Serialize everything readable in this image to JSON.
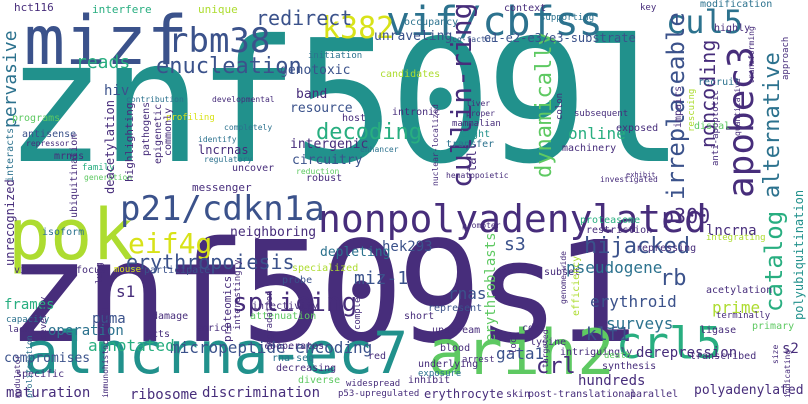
{
  "palette": {
    "dark-purple": "#472d7b",
    "indigo": "#3b528b",
    "blue": "#2c728e",
    "teal": "#21918c",
    "green": "#28ae80",
    "light-green": "#5ec962",
    "lime": "#addc30",
    "yellow": "#d8e219"
  },
  "words": {
    "znf509l": "znf509l",
    "znf509s1": "znf509s1",
    "mizf": "mizf",
    "pok": "pok",
    "alncrna_ec7": "alncrna-ec7",
    "arih2": "arih2",
    "apobec3": "apobec3",
    "nonpolyadenylated": "nonpolyadenylated",
    "vif_cbfss": "vif/cbfss",
    "rbm38": "rbm38",
    "p21_cdkn1a": "p21/cdkn1a",
    "cul5": "cul5",
    "crl5": "crl5",
    "k382": "k382",
    "eif4g": "eif4g",
    "enucleation": "enucleation",
    "cullin_ring": "cullin-ring",
    "splicing": "splicing",
    "decoding": "decoding",
    "erythropoiesis": "erythropoiesis",
    "irreplaceable": "irreplaceable",
    "dynamically": "dynamically",
    "catalog": "catalog",
    "alternative": "alternative",
    "noncoding": "noncoding",
    "hijacked": "hijacked",
    "p300": "p300",
    "pervasive": "pervasive",
    "polyadenylated": "polyadenylated",
    "redirect": "redirect",
    "reads": "reads",
    "s3": "s3",
    "rb": "rb",
    "miz_1": "miz-1",
    "klf1": "klf1",
    "crl": "crl",
    "pseudogene": "pseudogene",
    "erythroid": "erythroid",
    "micropeptide_encoding": "micropeptide-encoding",
    "annotated": "annotated",
    "online": "online",
    "surveys": "surveys",
    "gata1": "gata1",
    "erythroblasts": "erythroblasts",
    "hiv": "hiv",
    "s1": "s1",
    "rnas": "rnas",
    "hek293": "hek293",
    "derepression": "derepression",
    "hundreds": "hundreds",
    "s2": "s2",
    "unraveling": "unraveling",
    "genotoxic": "genotoxic",
    "e1_e2_e3": "e1-e2-e3/e3-substrate",
    "deacetylation": "deacetylation",
    "lncrnas": "lncrnas",
    "band": "band",
    "resource": "resource",
    "intergenic": "intergenic",
    "circuitry": "circuitry",
    "neighboring": "neighboring",
    "depleting": "depleting",
    "operation": "operation",
    "frames": "frames",
    "puma": "puma",
    "compromises": "compromises",
    "proteomics": "proteomics",
    "erythrocyte": "erythrocyte",
    "ribosome": "ribosome",
    "discrimination": "discrimination",
    "maturation": "maturation",
    "lncrna": "lncrna",
    "prime": "prime",
    "polyubiquitination": "polyubiquitination",
    "unrecognized": "unrecognized",
    "tall": "tall",
    "interfere": "interfere",
    "unique": "unique",
    "hct116": "hct116",
    "context": "context",
    "supporting": "supporting",
    "occupancy": "occupancy",
    "key": "key",
    "modification": "modification",
    "highly": "highly",
    "approach": "approach",
    "co_factor": "co-factor",
    "initiation": "initiation",
    "transforming": "transforming",
    "recruit": "recruit",
    "developmental": "developmental",
    "contribution": "contribution",
    "candidates": "candidates",
    "liver": "liver",
    "proper": "proper",
    "colon": "colon",
    "intronic": "intronic",
    "mammalian": "mammalian",
    "tight": "tight",
    "transfer": "transfer",
    "subsequent": "subsequent",
    "programs": "programs",
    "antisense": "antisense",
    "repressor": "repressor",
    "profiling": "profiling",
    "completely": "completely",
    "pathogens": "pathogens",
    "epigenetic": "epigenetic",
    "commonly": "commonly",
    "highlighting": "highlighting",
    "ubiquitination": "ubiquitination",
    "mrnas": "mrnas",
    "family": "family",
    "generation": "generation",
    "interacts": "interacts",
    "messenger": "messenger",
    "uncover": "uncover",
    "regulatory": "regulatory",
    "identify": "identify",
    "host": "host",
    "robust": "robust",
    "nuclear_localized": "nuclear-localized",
    "enhancer": "enhancer",
    "reduction": "reduction",
    "machinery": "machinery",
    "impairs": "impairs",
    "rescuing": "rescuing",
    "exposed": "exposed",
    "anti_apoptotic": "anti-apoptotic",
    "quantitative": "quantitative",
    "distal": "distal",
    "exhibit": "exhibit",
    "investigated": "investigated",
    "hematopoietic": "hematopoietic",
    "promoter": "promoter",
    "proteasome": "proteasome",
    "restriction": "restriction",
    "repressing": "repressing",
    "integrating": "integrating",
    "isoform": "isoform",
    "viral": "viral",
    "focus": "focus",
    "mouse": "mouse",
    "participate": "participate",
    "specialized": "specialized",
    "probe": "probe",
    "subset": "subset",
    "genome_wide": "genome-wide",
    "efficiency": "efficiency",
    "acetylation": "acetylation",
    "terminally": "terminally",
    "lung": "lung",
    "capacity": "capacity",
    "lacks": "lacks",
    "severely": "severely",
    "interestingly": "interestingly",
    "infectivity": "infectivity",
    "attenuation": "attenuation",
    "damage": "damage",
    "enrich": "enrich",
    "acts": "acts",
    "degradation": "degradation",
    "short": "short",
    "represent": "represent",
    "complex": "complex",
    "upstream": "upstream",
    "cd4": "cd4",
    "intriguingly": "intriguingly",
    "ligase": "ligase",
    "primary": "primary",
    "cooperates": "cooperates",
    "rna_seq": "rna-seq",
    "red": "red",
    "blood": "blood",
    "lysine": "lysine",
    "targeted": "targeted",
    "death": "death",
    "synthesis": "synthesis",
    "loci": "loci",
    "arrest": "arrest",
    "widespread": "widespread",
    "underlying": "underlying",
    "exposure": "exposure",
    "specific": "specific",
    "immunohistochemical": "immunohistochemical",
    "modulator": "modulator",
    "proliferation": "proliferation",
    "decreasing": "decreasing",
    "diverse": "diverse",
    "p53_upregulated": "p53-upregulated",
    "inhibit": "inhibit",
    "skin": "skin",
    "post_translational": "post-translational",
    "parallel": "parallel",
    "transcribed": "transcribed",
    "indicating": "indicating",
    "size": "size",
    "s2_small": "s2"
  }
}
